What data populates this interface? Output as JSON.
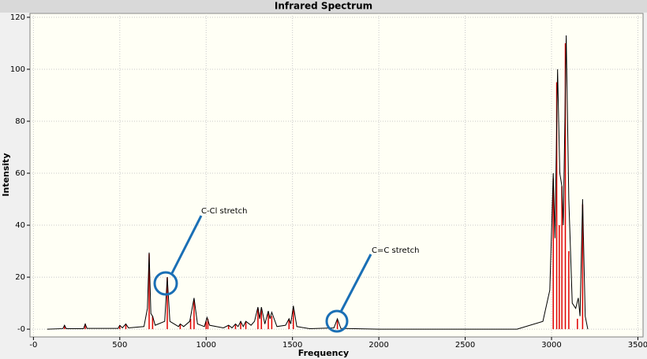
{
  "chart_data": {
    "type": "spectrum",
    "title": "Infrared Spectrum",
    "x_label": "Frequency",
    "y_label": "Intensity",
    "xlim": [
      -20,
      3530
    ],
    "ylim": [
      -3,
      121.5
    ],
    "xticks": [
      {
        "value": 0,
        "label": "-0"
      },
      500,
      1000,
      1500,
      2000,
      2500,
      3000,
      3500
    ],
    "yticks": [
      {
        "value": 0,
        "label": "-0"
      },
      20,
      40,
      60,
      80,
      100,
      120
    ],
    "grid": true,
    "sticks": {
      "color": "#e00000",
      "x": [
        180,
        300,
        500,
        535,
        670,
        690,
        775,
        850,
        910,
        930,
        1000,
        1010,
        1130,
        1170,
        1200,
        1230,
        1300,
        1320,
        1360,
        1380,
        1480,
        1505,
        1760,
        3010,
        3030,
        3045,
        3060,
        3080,
        3100,
        3150,
        3180
      ],
      "values": [
        1.5,
        2,
        1.5,
        2,
        29,
        5,
        20,
        2,
        4,
        11,
        3,
        4,
        1.5,
        2,
        3,
        3,
        8,
        8,
        6,
        5,
        4,
        8,
        3.5,
        58,
        95,
        40,
        55,
        110,
        30,
        4,
        48
      ]
    },
    "envelope": {
      "color": "#000000",
      "x": [
        80,
        170,
        180,
        190,
        290,
        300,
        310,
        490,
        500,
        515,
        535,
        550,
        640,
        660,
        670,
        680,
        690,
        705,
        760,
        775,
        790,
        840,
        850,
        870,
        905,
        930,
        950,
        990,
        1005,
        1020,
        1100,
        1130,
        1150,
        1170,
        1185,
        1200,
        1215,
        1230,
        1260,
        1280,
        1300,
        1310,
        1320,
        1340,
        1360,
        1370,
        1380,
        1410,
        1460,
        1480,
        1490,
        1505,
        1525,
        1600,
        1740,
        1760,
        1780,
        2000,
        2800,
        2950,
        2990,
        3010,
        3020,
        3035,
        3048,
        3060,
        3068,
        3085,
        3100,
        3120,
        3140,
        3155,
        3165,
        3180,
        3195,
        3210
      ],
      "values": [
        0,
        0.2,
        1.5,
        0.2,
        0.2,
        2,
        0.3,
        0.3,
        1.5,
        0.5,
        2,
        0.5,
        1,
        8,
        29.5,
        6,
        5,
        1.5,
        3,
        20,
        3,
        1,
        2,
        1,
        3,
        12,
        2,
        1,
        4.5,
        1.5,
        0.5,
        1.5,
        0.5,
        2,
        1,
        3,
        1,
        3,
        1.5,
        3,
        8.5,
        4,
        8.5,
        2,
        7,
        4,
        6.5,
        1,
        1.5,
        4,
        2,
        9,
        1,
        0.2,
        0.5,
        4,
        0.3,
        0,
        0,
        3,
        15,
        60,
        35,
        100,
        60,
        55,
        40,
        113,
        50,
        10,
        8,
        12,
        5,
        50,
        5,
        0
      ]
    },
    "annotations": [
      "C-Cl stretch",
      "C=C stretch"
    ]
  }
}
